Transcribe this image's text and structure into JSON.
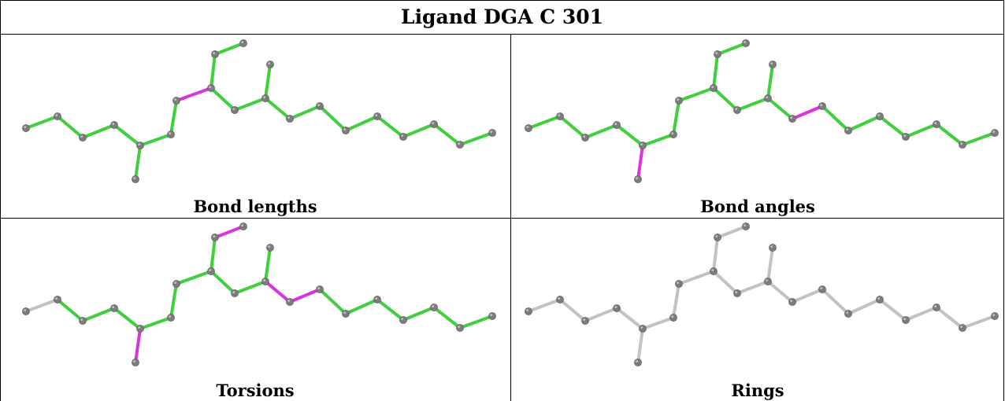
{
  "title": "Ligand DGA C 301",
  "colors": {
    "ok": "#3fcf3f",
    "outlier": "#dd33dd",
    "none": "#c2c2c2",
    "atom": "#7c7c7c"
  },
  "panels": [
    {
      "caption": "Bond lengths",
      "pink": [
        "7-8"
      ],
      "grey": []
    },
    {
      "caption": "Bond angles",
      "pink": [
        "4-5",
        "5-7",
        "14-15"
      ],
      "grey": []
    },
    {
      "caption": "Torsions",
      "pink": [
        "4-5",
        "5-7",
        "9-10",
        "12-14",
        "14-15"
      ],
      "grey": [
        "0-1",
        "5-6",
        "10-11",
        "13-14",
        "22-23"
      ]
    },
    {
      "caption": "Rings",
      "pink": [],
      "grey": [
        "all"
      ]
    }
  ]
}
